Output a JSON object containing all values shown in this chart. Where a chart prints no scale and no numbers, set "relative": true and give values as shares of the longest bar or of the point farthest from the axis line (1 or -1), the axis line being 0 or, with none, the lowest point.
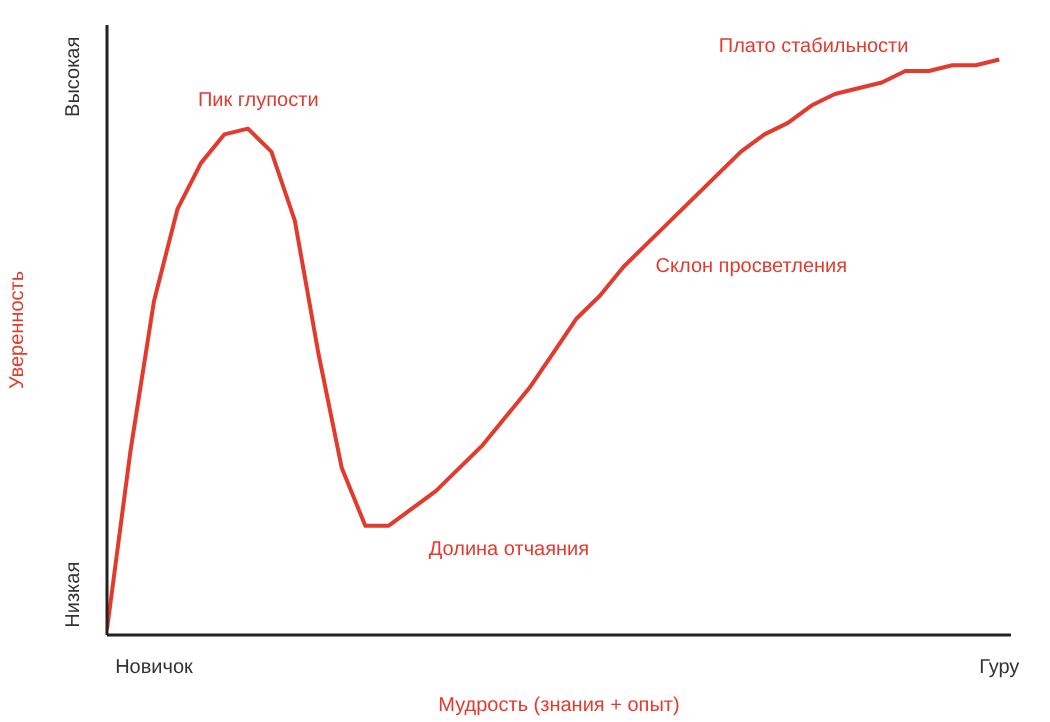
{
  "chart_data": {
    "type": "line",
    "xlabel": "Мудрость (знания + опыт)",
    "ylabel": "Уверенность",
    "relative": true,
    "categories": [
      null,
      null,
      "Новичок",
      null,
      null,
      null,
      null,
      null,
      null,
      null,
      null,
      null,
      null,
      null,
      null,
      null,
      null,
      null,
      null,
      null,
      null,
      null,
      null,
      null,
      null,
      null,
      null,
      null,
      null,
      null,
      null,
      null,
      null,
      null,
      null,
      null,
      null,
      null,
      "Гуру"
    ],
    "grid": false,
    "marker": "none",
    "line_style": "solid",
    "series": [
      {
        "color": "#e23b2e",
        "values": [
          0.01,
          0.32,
          0.58,
          0.74,
          0.82,
          0.87,
          0.88,
          0.84,
          0.72,
          0.49,
          0.29,
          0.19,
          0.19,
          0.22,
          0.25,
          0.29,
          0.33,
          0.38,
          0.43,
          0.49,
          0.55,
          0.59,
          0.64,
          0.68,
          0.72,
          0.76,
          0.8,
          0.84,
          0.87,
          0.89,
          0.92,
          0.94,
          0.95,
          0.96,
          0.98,
          0.98,
          0.99,
          0.99,
          1.0
        ]
      }
    ],
    "annotations": [
      "Пик глупости",
      "Долина отчаяния",
      "Склон просветления",
      "Плато стабильности",
      "Низкая",
      "Высокая"
    ]
  }
}
